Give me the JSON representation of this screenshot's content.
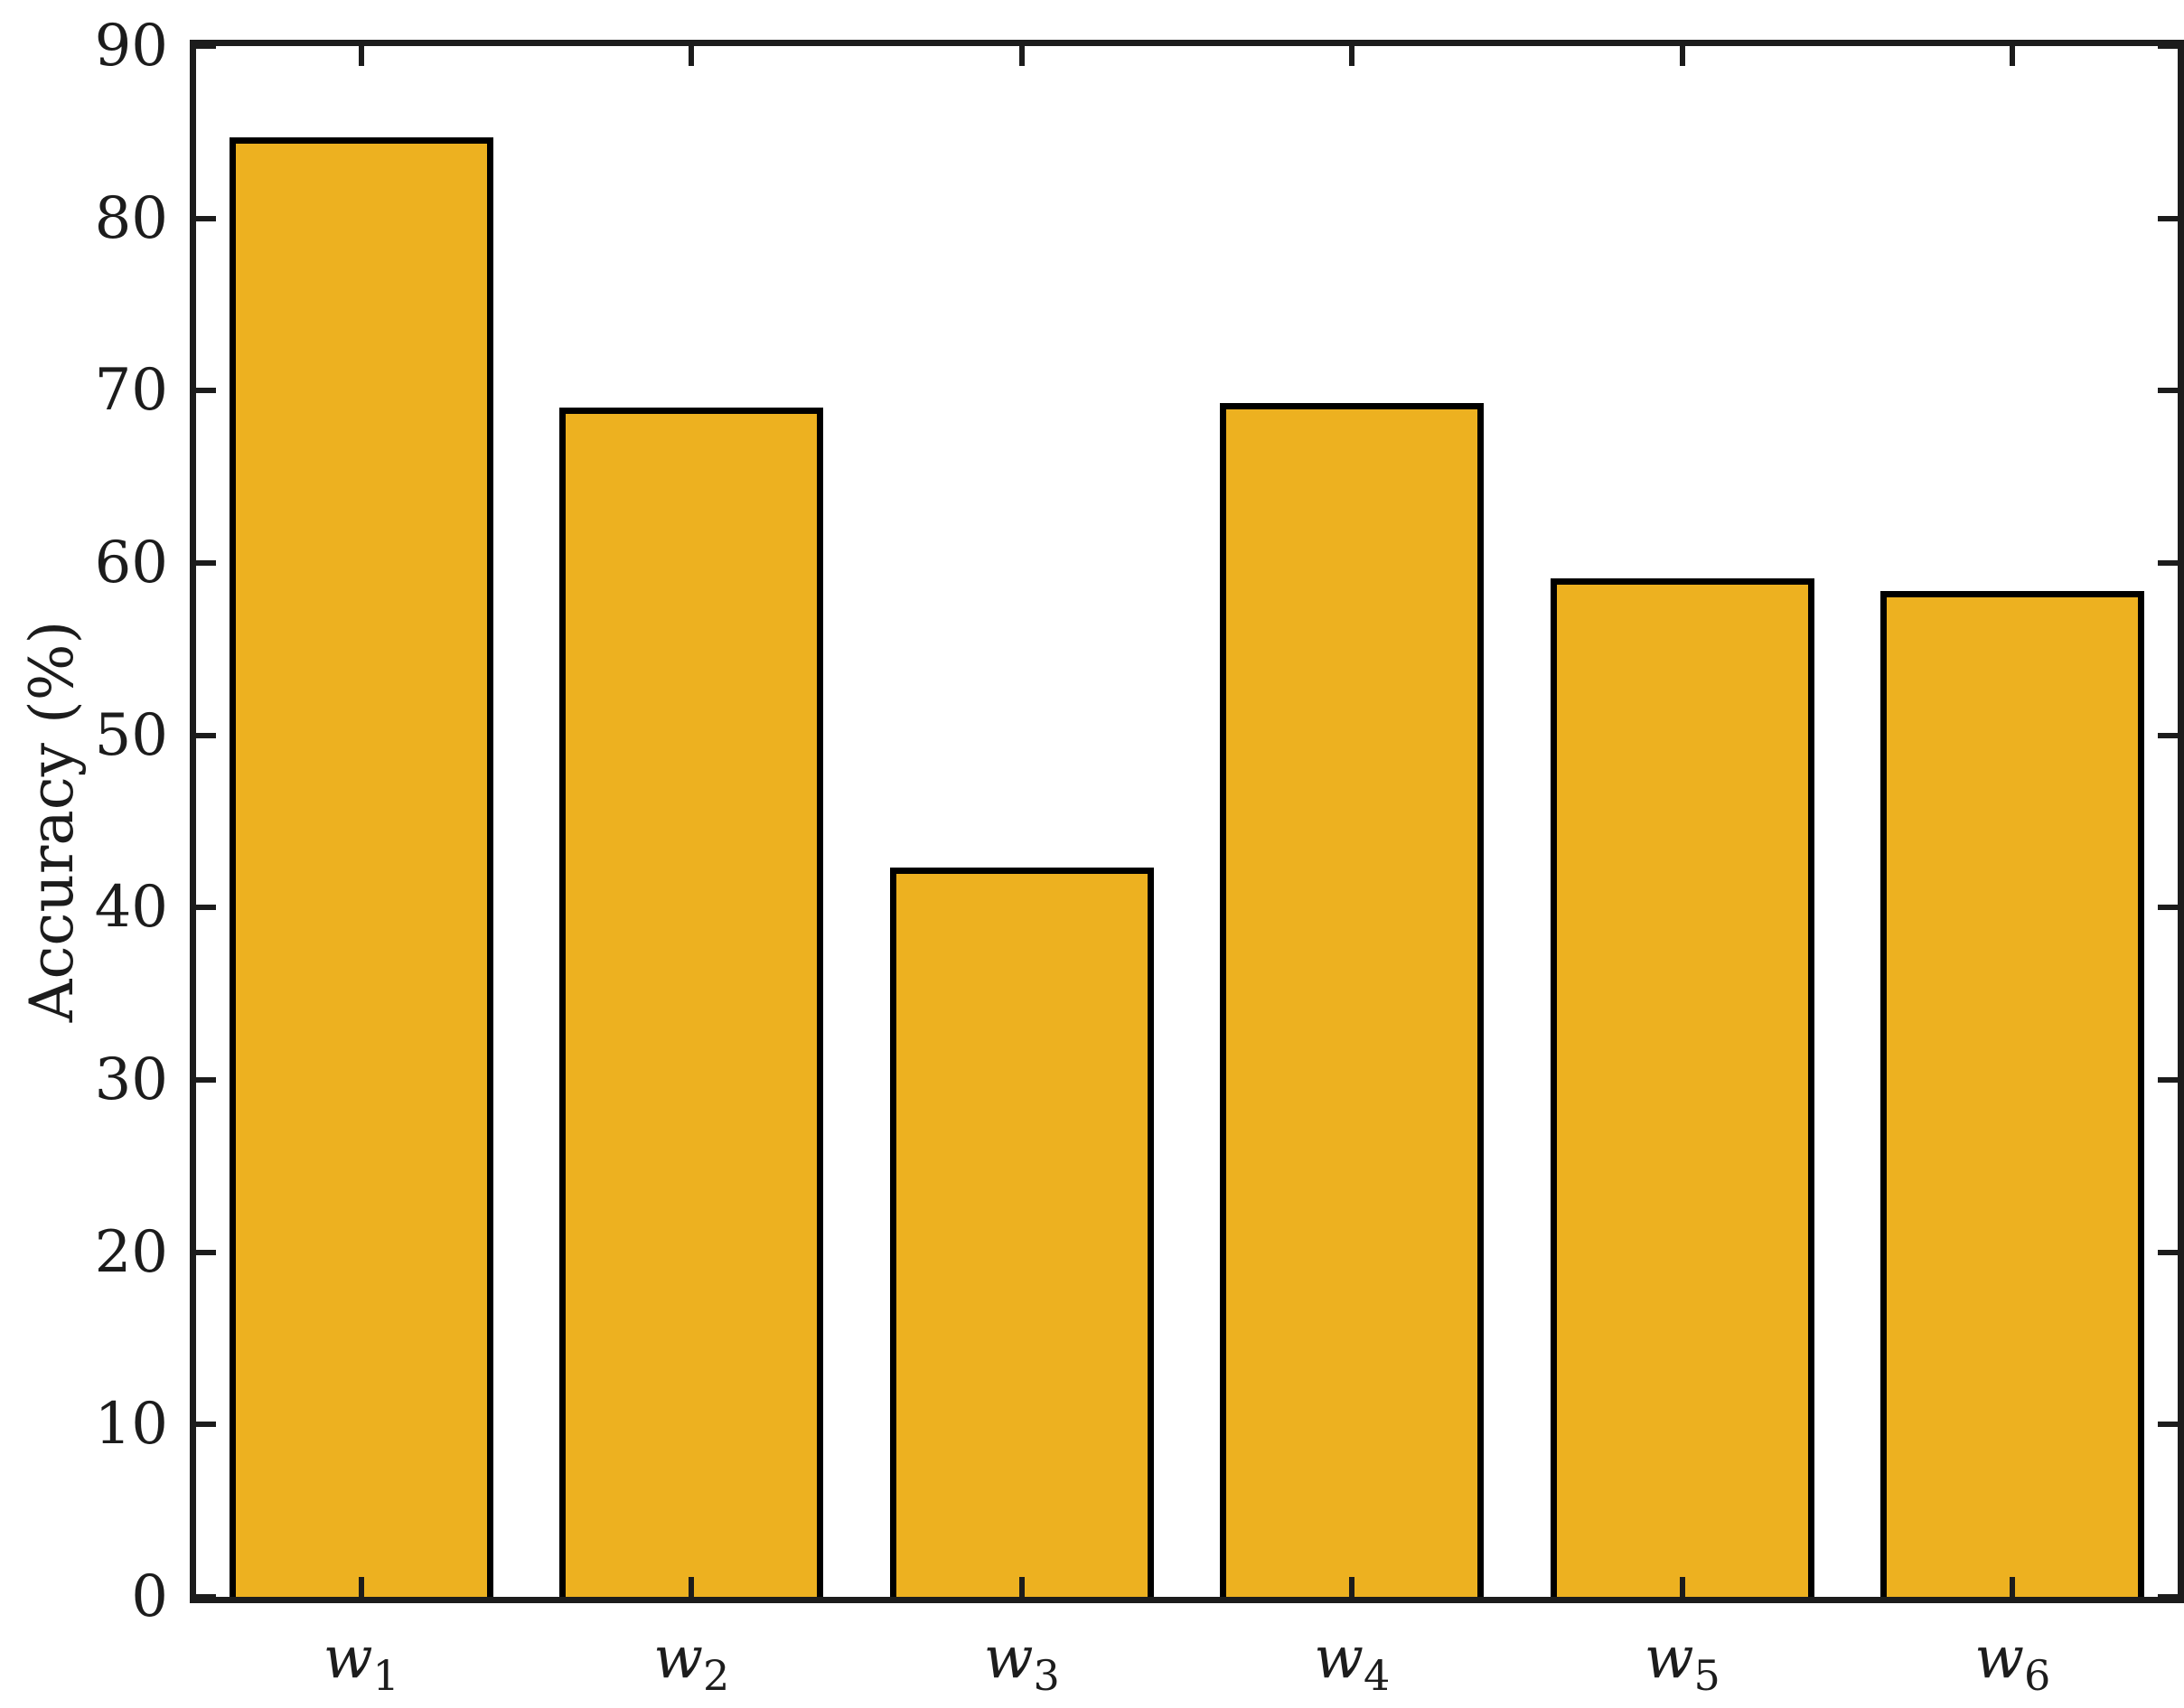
{
  "chart_data": {
    "type": "bar",
    "title": "",
    "xlabel": "",
    "ylabel": "Accuracy (%)",
    "categories": [
      "w1",
      "w2",
      "w3",
      "w4",
      "w5",
      "w6"
    ],
    "category_base": "w",
    "category_subscripts": [
      "1",
      "2",
      "3",
      "4",
      "5",
      "6"
    ],
    "values": [
      84.7,
      69.0,
      42.3,
      69.3,
      59.1,
      58.4
    ],
    "ylim": [
      0,
      90
    ],
    "yticks": [
      0,
      10,
      20,
      30,
      40,
      50,
      60,
      70,
      80,
      90
    ],
    "grid": false,
    "legend": "none",
    "bar_fraction": 0.8,
    "tick_direction": "in",
    "box": true,
    "colors": {
      "bar_fill": "#EDB120",
      "bar_edge": "#000000",
      "axis": "#1C1C1C",
      "text": "#1C1C1C",
      "background": "#FFFFFF"
    }
  }
}
